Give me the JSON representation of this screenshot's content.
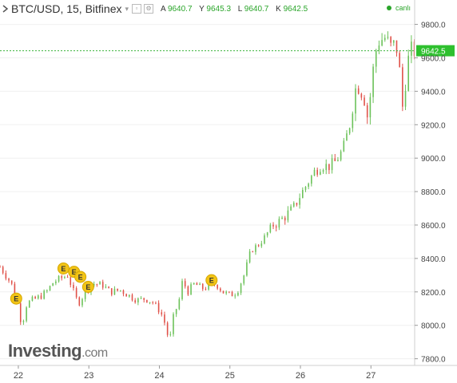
{
  "header": {
    "symbol": "BTC/USD, 15, Bitfinex",
    "ohlc": [
      {
        "label": "A",
        "value": "9640.7"
      },
      {
        "label": "Y",
        "value": "9645.3"
      },
      {
        "label": "L",
        "value": "9640.7"
      },
      {
        "label": "K",
        "value": "9642.5"
      }
    ],
    "connection_text": "canlı"
  },
  "colors": {
    "up": "#6cc25a",
    "down": "#e0524a",
    "price_line": "#3db43d",
    "price_label_bg": "#2ec02e"
  },
  "brand": {
    "name": "Investing",
    "tld": ".com"
  },
  "chart_data": {
    "type": "candlestick",
    "symbol": "BTC/USD",
    "interval": "15",
    "exchange": "Bitfinex",
    "x_ticks": [
      "22",
      "23",
      "24",
      "25",
      "26",
      "27"
    ],
    "y_ticks": [
      "9800.0",
      "9600.0",
      "9400.0",
      "9200.0",
      "9000.0",
      "8800.0",
      "8600.0",
      "8400.0",
      "8200.0",
      "8000.0",
      "7800.0"
    ],
    "ylim": [
      7760,
      9860
    ],
    "xlim": [
      21.74,
      27.62
    ],
    "last_price": 9642.5,
    "last_price_label": "9642.5",
    "price_path": [
      [
        21.74,
        8350
      ],
      [
        21.9,
        8250
      ],
      [
        21.98,
        8150
      ],
      [
        22.05,
        8000
      ],
      [
        22.12,
        8130
      ],
      [
        22.2,
        8150
      ],
      [
        22.3,
        8170
      ],
      [
        22.4,
        8200
      ],
      [
        22.5,
        8260
      ],
      [
        22.6,
        8280
      ],
      [
        22.7,
        8300
      ],
      [
        22.8,
        8180
      ],
      [
        22.85,
        8130
      ],
      [
        22.95,
        8200
      ],
      [
        23.05,
        8250
      ],
      [
        23.2,
        8240
      ],
      [
        23.3,
        8200
      ],
      [
        23.45,
        8210
      ],
      [
        23.6,
        8170
      ],
      [
        23.7,
        8150
      ],
      [
        23.8,
        8160
      ],
      [
        23.9,
        8140
      ],
      [
        24.0,
        8090
      ],
      [
        24.05,
        8050
      ],
      [
        24.1,
        7980
      ],
      [
        24.14,
        7890
      ],
      [
        24.2,
        8050
      ],
      [
        24.28,
        8150
      ],
      [
        24.33,
        8270
      ],
      [
        24.4,
        8200
      ],
      [
        24.5,
        8250
      ],
      [
        24.6,
        8220
      ],
      [
        24.7,
        8230
      ],
      [
        24.8,
        8250
      ],
      [
        24.9,
        8200
      ],
      [
        25.0,
        8180
      ],
      [
        25.1,
        8200
      ],
      [
        25.2,
        8300
      ],
      [
        25.3,
        8450
      ],
      [
        25.4,
        8480
      ],
      [
        25.5,
        8530
      ],
      [
        25.6,
        8600
      ],
      [
        25.7,
        8620
      ],
      [
        25.8,
        8660
      ],
      [
        25.9,
        8700
      ],
      [
        26.0,
        8780
      ],
      [
        26.1,
        8850
      ],
      [
        26.2,
        8920
      ],
      [
        26.3,
        8960
      ],
      [
        26.4,
        8950
      ],
      [
        26.5,
        8980
      ],
      [
        26.6,
        9050
      ],
      [
        26.7,
        9200
      ],
      [
        26.75,
        9350
      ],
      [
        26.8,
        9450
      ],
      [
        26.9,
        9380
      ],
      [
        26.95,
        9250
      ],
      [
        27.0,
        9400
      ],
      [
        27.05,
        9600
      ],
      [
        27.1,
        9700
      ],
      [
        27.2,
        9720
      ],
      [
        27.3,
        9650
      ],
      [
        27.35,
        9700
      ],
      [
        27.4,
        9550
      ],
      [
        27.45,
        9300
      ],
      [
        27.5,
        9500
      ],
      [
        27.55,
        9640
      ],
      [
        27.62,
        9642.5
      ]
    ],
    "earnings_markers": [
      {
        "x": 21.97,
        "y": 8160,
        "label": "E"
      },
      {
        "x": 22.64,
        "y": 8340,
        "label": "E"
      },
      {
        "x": 22.79,
        "y": 8320,
        "label": "E"
      },
      {
        "x": 22.88,
        "y": 8290,
        "label": "E"
      },
      {
        "x": 22.99,
        "y": 8230,
        "label": "E"
      },
      {
        "x": 24.74,
        "y": 8270,
        "label": "E"
      }
    ]
  }
}
